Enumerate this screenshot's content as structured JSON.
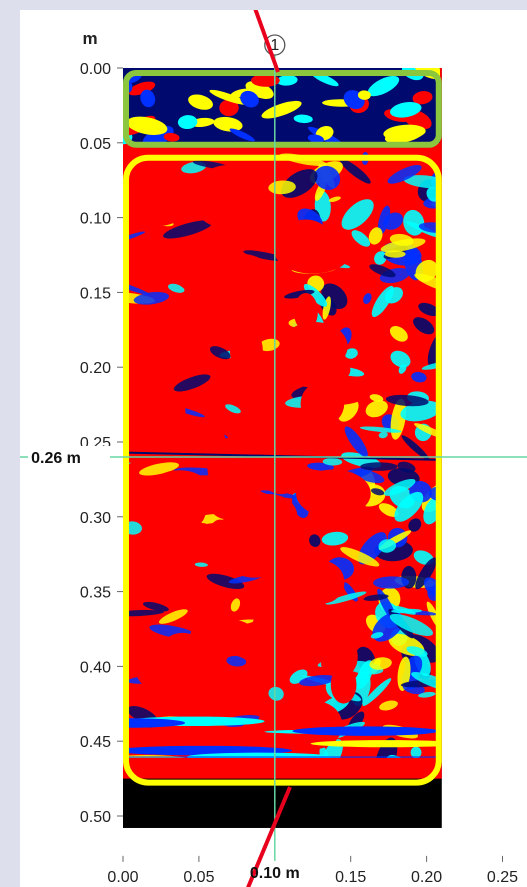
{
  "chart_data": {
    "type": "heatmap",
    "y_unit": "m",
    "x_unit": "m",
    "y_ticks": [
      "0.00",
      "0.05",
      "0.10",
      "0.15",
      "0.20",
      "0.25",
      "0.30",
      "0.35",
      "0.40",
      "0.45",
      "0.50"
    ],
    "x_ticks": [
      "0.00",
      "0.05",
      "0.15",
      "0.20",
      "0.25"
    ],
    "ylim": [
      0.0,
      0.53
    ],
    "xlim": [
      0.0,
      0.27
    ],
    "data_extent": {
      "x": [
        0.0,
        0.21
      ],
      "y": [
        0.0,
        0.475
      ]
    },
    "cursor": {
      "marker": "1",
      "x": 0.1,
      "y": 0.26,
      "x_readout": "0.10 m",
      "y_readout": "0.26 m"
    },
    "zones": [
      {
        "y": [
          0.0,
          0.05
        ],
        "outline": "#8cc63f"
      },
      {
        "y": [
          0.06,
          0.475
        ],
        "outline": "#ffff00"
      }
    ],
    "colormap": [
      "#000a6e",
      "#0030ff",
      "#00ffff",
      "#ffff00",
      "#ff0000"
    ],
    "cursor_color": "#66d6a3",
    "arrow_color": "#e8001c"
  }
}
